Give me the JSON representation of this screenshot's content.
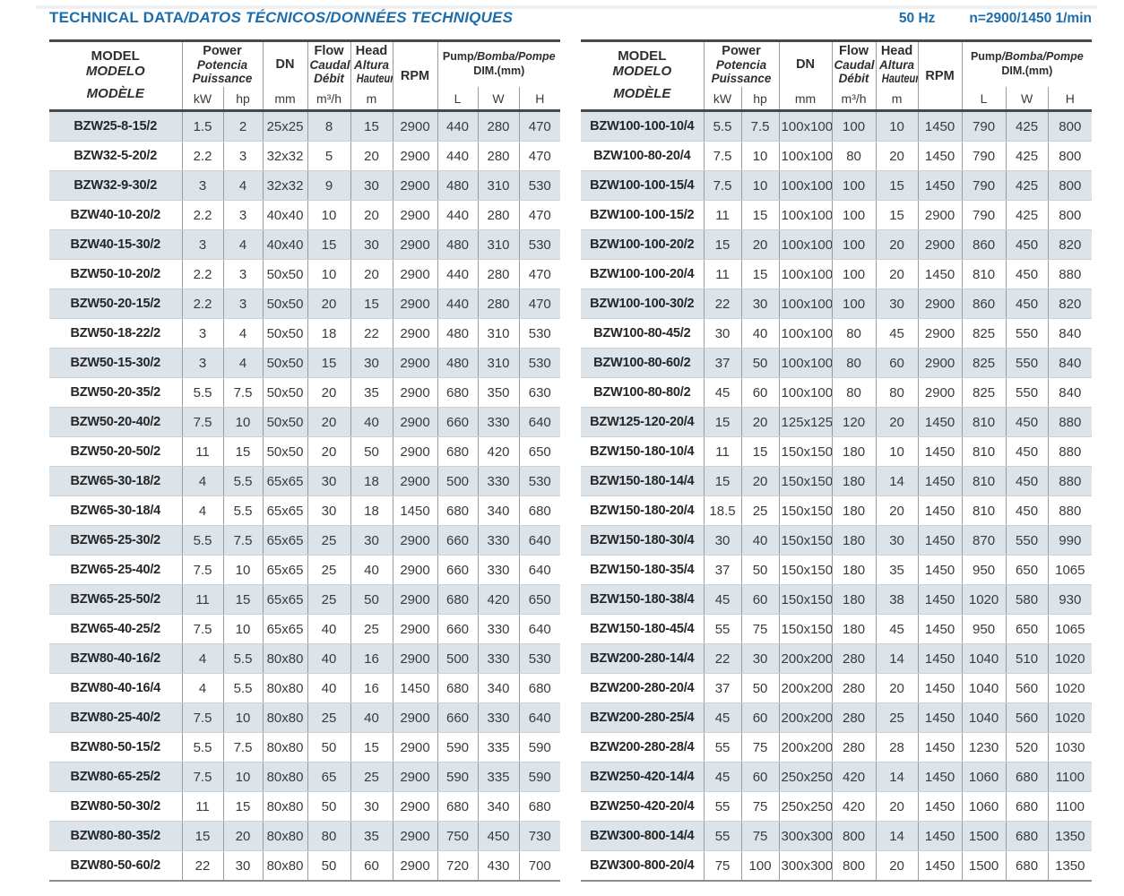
{
  "title": {
    "main": "TECHNICAL DATA",
    "translations": "/DATOS TÉCNICOS/DONNÉES TECHNIQUES"
  },
  "conditions": {
    "frequency": "50 Hz",
    "speed": "n=2900/1450 1/min"
  },
  "colors": {
    "title_blue": "#1d6dab",
    "row_shade": "#dce3e9",
    "border_dark": "#46484a",
    "border_gray": "#949ca4"
  },
  "header": {
    "model": [
      "MODEL",
      "MODELO",
      "MODÈLE"
    ],
    "power": [
      "Power",
      "Potencia",
      "Puissance"
    ],
    "dn": "DN",
    "flow": [
      "Flow",
      "Caudal",
      "Débit"
    ],
    "head": [
      "Head",
      "Altura",
      "Hauteur"
    ],
    "rpm": "RPM",
    "dim_en": "Pump",
    "dim_other": "/Bomba/Pompe",
    "dim_sub": "DIM.(mm)",
    "units": [
      "kW",
      "hp",
      "mm",
      "m³/h",
      "m",
      "L",
      "W",
      "H"
    ]
  },
  "tables": [
    {
      "rows": [
        [
          "BZW25-8-15/2",
          "1.5",
          "2",
          "25x25",
          "8",
          "15",
          "2900",
          "440",
          "280",
          "470"
        ],
        [
          "BZW32-5-20/2",
          "2.2",
          "3",
          "32x32",
          "5",
          "20",
          "2900",
          "440",
          "280",
          "470"
        ],
        [
          "BZW32-9-30/2",
          "3",
          "4",
          "32x32",
          "9",
          "30",
          "2900",
          "480",
          "310",
          "530"
        ],
        [
          "BZW40-10-20/2",
          "2.2",
          "3",
          "40x40",
          "10",
          "20",
          "2900",
          "440",
          "280",
          "470"
        ],
        [
          "BZW40-15-30/2",
          "3",
          "4",
          "40x40",
          "15",
          "30",
          "2900",
          "480",
          "310",
          "530"
        ],
        [
          "BZW50-10-20/2",
          "2.2",
          "3",
          "50x50",
          "10",
          "20",
          "2900",
          "440",
          "280",
          "470"
        ],
        [
          "BZW50-20-15/2",
          "2.2",
          "3",
          "50x50",
          "20",
          "15",
          "2900",
          "440",
          "280",
          "470"
        ],
        [
          "BZW50-18-22/2",
          "3",
          "4",
          "50x50",
          "18",
          "22",
          "2900",
          "480",
          "310",
          "530"
        ],
        [
          "BZW50-15-30/2",
          "3",
          "4",
          "50x50",
          "15",
          "30",
          "2900",
          "480",
          "310",
          "530"
        ],
        [
          "BZW50-20-35/2",
          "5.5",
          "7.5",
          "50x50",
          "20",
          "35",
          "2900",
          "680",
          "350",
          "630"
        ],
        [
          "BZW50-20-40/2",
          "7.5",
          "10",
          "50x50",
          "20",
          "40",
          "2900",
          "660",
          "330",
          "640"
        ],
        [
          "BZW50-20-50/2",
          "11",
          "15",
          "50x50",
          "20",
          "50",
          "2900",
          "680",
          "420",
          "650"
        ],
        [
          "BZW65-30-18/2",
          "4",
          "5.5",
          "65x65",
          "30",
          "18",
          "2900",
          "500",
          "330",
          "530"
        ],
        [
          "BZW65-30-18/4",
          "4",
          "5.5",
          "65x65",
          "30",
          "18",
          "1450",
          "680",
          "340",
          "680"
        ],
        [
          "BZW65-25-30/2",
          "5.5",
          "7.5",
          "65x65",
          "25",
          "30",
          "2900",
          "660",
          "330",
          "640"
        ],
        [
          "BZW65-25-40/2",
          "7.5",
          "10",
          "65x65",
          "25",
          "40",
          "2900",
          "660",
          "330",
          "640"
        ],
        [
          "BZW65-25-50/2",
          "11",
          "15",
          "65x65",
          "25",
          "50",
          "2900",
          "680",
          "420",
          "650"
        ],
        [
          "BZW65-40-25/2",
          "7.5",
          "10",
          "65x65",
          "40",
          "25",
          "2900",
          "660",
          "330",
          "640"
        ],
        [
          "BZW80-40-16/2",
          "4",
          "5.5",
          "80x80",
          "40",
          "16",
          "2900",
          "500",
          "330",
          "530"
        ],
        [
          "BZW80-40-16/4",
          "4",
          "5.5",
          "80x80",
          "40",
          "16",
          "1450",
          "680",
          "340",
          "680"
        ],
        [
          "BZW80-25-40/2",
          "7.5",
          "10",
          "80x80",
          "25",
          "40",
          "2900",
          "660",
          "330",
          "640"
        ],
        [
          "BZW80-50-15/2",
          "5.5",
          "7.5",
          "80x80",
          "50",
          "15",
          "2900",
          "590",
          "335",
          "590"
        ],
        [
          "BZW80-65-25/2",
          "7.5",
          "10",
          "80x80",
          "65",
          "25",
          "2900",
          "590",
          "335",
          "590"
        ],
        [
          "BZW80-50-30/2",
          "11",
          "15",
          "80x80",
          "50",
          "30",
          "2900",
          "680",
          "340",
          "680"
        ],
        [
          "BZW80-80-35/2",
          "15",
          "20",
          "80x80",
          "80",
          "35",
          "2900",
          "750",
          "450",
          "730"
        ],
        [
          "BZW80-50-60/2",
          "22",
          "30",
          "80x80",
          "50",
          "60",
          "2900",
          "720",
          "430",
          "700"
        ]
      ]
    },
    {
      "rows": [
        [
          "BZW100-100-10/4",
          "5.5",
          "7.5",
          "100x100",
          "100",
          "10",
          "1450",
          "790",
          "425",
          "800"
        ],
        [
          "BZW100-80-20/4",
          "7.5",
          "10",
          "100x100",
          "80",
          "20",
          "1450",
          "790",
          "425",
          "800"
        ],
        [
          "BZW100-100-15/4",
          "7.5",
          "10",
          "100x100",
          "100",
          "15",
          "1450",
          "790",
          "425",
          "800"
        ],
        [
          "BZW100-100-15/2",
          "11",
          "15",
          "100x100",
          "100",
          "15",
          "2900",
          "790",
          "425",
          "800"
        ],
        [
          "BZW100-100-20/2",
          "15",
          "20",
          "100x100",
          "100",
          "20",
          "2900",
          "860",
          "450",
          "820"
        ],
        [
          "BZW100-100-20/4",
          "11",
          "15",
          "100x100",
          "100",
          "20",
          "1450",
          "810",
          "450",
          "880"
        ],
        [
          "BZW100-100-30/2",
          "22",
          "30",
          "100x100",
          "100",
          "30",
          "2900",
          "860",
          "450",
          "820"
        ],
        [
          "BZW100-80-45/2",
          "30",
          "40",
          "100x100",
          "80",
          "45",
          "2900",
          "825",
          "550",
          "840"
        ],
        [
          "BZW100-80-60/2",
          "37",
          "50",
          "100x100",
          "80",
          "60",
          "2900",
          "825",
          "550",
          "840"
        ],
        [
          "BZW100-80-80/2",
          "45",
          "60",
          "100x100",
          "80",
          "80",
          "2900",
          "825",
          "550",
          "840"
        ],
        [
          "BZW125-120-20/4",
          "15",
          "20",
          "125x125",
          "120",
          "20",
          "1450",
          "810",
          "450",
          "880"
        ],
        [
          "BZW150-180-10/4",
          "11",
          "15",
          "150x150",
          "180",
          "10",
          "1450",
          "810",
          "450",
          "880"
        ],
        [
          "BZW150-180-14/4",
          "15",
          "20",
          "150x150",
          "180",
          "14",
          "1450",
          "810",
          "450",
          "880"
        ],
        [
          "BZW150-180-20/4",
          "18.5",
          "25",
          "150x150",
          "180",
          "20",
          "1450",
          "810",
          "450",
          "880"
        ],
        [
          "BZW150-180-30/4",
          "30",
          "40",
          "150x150",
          "180",
          "30",
          "1450",
          "870",
          "550",
          "990"
        ],
        [
          "BZW150-180-35/4",
          "37",
          "50",
          "150x150",
          "180",
          "35",
          "1450",
          "950",
          "650",
          "1065"
        ],
        [
          "BZW150-180-38/4",
          "45",
          "60",
          "150x150",
          "180",
          "38",
          "1450",
          "1020",
          "580",
          "930"
        ],
        [
          "BZW150-180-45/4",
          "55",
          "75",
          "150x150",
          "180",
          "45",
          "1450",
          "950",
          "650",
          "1065"
        ],
        [
          "BZW200-280-14/4",
          "22",
          "30",
          "200x200",
          "280",
          "14",
          "1450",
          "1040",
          "510",
          "1020"
        ],
        [
          "BZW200-280-20/4",
          "37",
          "50",
          "200x200",
          "280",
          "20",
          "1450",
          "1040",
          "560",
          "1020"
        ],
        [
          "BZW200-280-25/4",
          "45",
          "60",
          "200x200",
          "280",
          "25",
          "1450",
          "1040",
          "560",
          "1020"
        ],
        [
          "BZW200-280-28/4",
          "55",
          "75",
          "200x200",
          "280",
          "28",
          "1450",
          "1230",
          "520",
          "1030"
        ],
        [
          "BZW250-420-14/4",
          "45",
          "60",
          "250x250",
          "420",
          "14",
          "1450",
          "1060",
          "680",
          "1100"
        ],
        [
          "BZW250-420-20/4",
          "55",
          "75",
          "250x250",
          "420",
          "20",
          "1450",
          "1060",
          "680",
          "1100"
        ],
        [
          "BZW300-800-14/4",
          "55",
          "75",
          "300x300",
          "800",
          "14",
          "1450",
          "1500",
          "680",
          "1350"
        ],
        [
          "BZW300-800-20/4",
          "75",
          "100",
          "300x300",
          "800",
          "20",
          "1450",
          "1500",
          "680",
          "1350"
        ]
      ]
    }
  ]
}
